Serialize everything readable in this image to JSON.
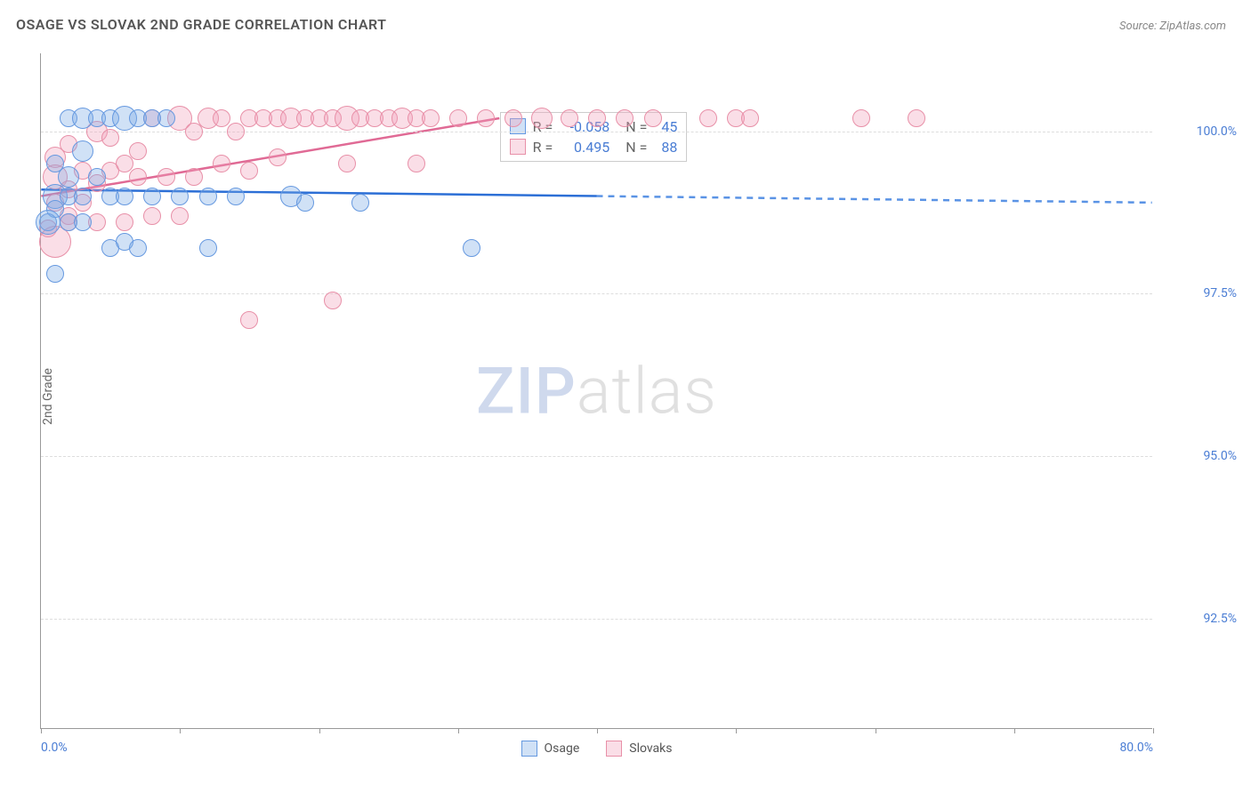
{
  "title": "OSAGE VS SLOVAK 2ND GRADE CORRELATION CHART",
  "source": "Source: ZipAtlas.com",
  "ylabel": "2nd Grade",
  "watermark_zip": "ZIP",
  "watermark_atlas": "atlas",
  "chart": {
    "type": "scatter",
    "xlim": [
      0,
      80
    ],
    "ylim": [
      90.8,
      101.2
    ],
    "x_tick_positions": [
      0,
      10,
      20,
      30,
      40,
      50,
      60,
      70,
      80
    ],
    "x_tick_labels_shown": {
      "0": "0.0%",
      "80": "80.0%"
    },
    "y_tick_positions": [
      92.5,
      95.0,
      97.5,
      100.0
    ],
    "y_tick_labels": {
      "92.5": "92.5%",
      "95.0": "95.0%",
      "97.5": "97.5%",
      "100.0": "100.0%"
    },
    "grid_color": "#dddddd",
    "axis_color": "#999999",
    "background_color": "#ffffff",
    "label_color": "#4a7dd4",
    "title_color": "#555555",
    "title_fontsize": 16,
    "label_fontsize": 14
  },
  "series": {
    "osage": {
      "label": "Osage",
      "stroke": "#6699e0",
      "fill": "rgba(120,170,230,0.35)",
      "regression": {
        "x1": 0,
        "y1": 99.1,
        "x_solid_end": 40,
        "y_solid_end": 99.0,
        "x2": 80,
        "y2": 98.9,
        "solid_color": "#2c6fd6",
        "dash_color": "#5a93e5"
      },
      "stats": {
        "R": "-0.058",
        "N": "45"
      },
      "points": [
        {
          "x": 2,
          "y": 100.2,
          "r": 10
        },
        {
          "x": 3,
          "y": 100.2,
          "r": 12
        },
        {
          "x": 3,
          "y": 99.7,
          "r": 12
        },
        {
          "x": 4,
          "y": 100.2,
          "r": 10
        },
        {
          "x": 5,
          "y": 100.2,
          "r": 10
        },
        {
          "x": 6,
          "y": 100.2,
          "r": 14
        },
        {
          "x": 7,
          "y": 100.2,
          "r": 10
        },
        {
          "x": 8,
          "y": 100.2,
          "r": 10
        },
        {
          "x": 9,
          "y": 100.2,
          "r": 10
        },
        {
          "x": 1,
          "y": 99.5,
          "r": 10
        },
        {
          "x": 2,
          "y": 99.3,
          "r": 12
        },
        {
          "x": 4,
          "y": 99.3,
          "r": 10
        },
        {
          "x": 1,
          "y": 99.0,
          "r": 14
        },
        {
          "x": 2,
          "y": 99.0,
          "r": 10
        },
        {
          "x": 3,
          "y": 99.0,
          "r": 10
        },
        {
          "x": 5,
          "y": 99.0,
          "r": 10
        },
        {
          "x": 6,
          "y": 99.0,
          "r": 10
        },
        {
          "x": 8,
          "y": 99.0,
          "r": 10
        },
        {
          "x": 10,
          "y": 99.0,
          "r": 10
        },
        {
          "x": 12,
          "y": 99.0,
          "r": 10
        },
        {
          "x": 14,
          "y": 99.0,
          "r": 10
        },
        {
          "x": 18,
          "y": 99.0,
          "r": 12
        },
        {
          "x": 1,
          "y": 98.8,
          "r": 10
        },
        {
          "x": 0.5,
          "y": 98.6,
          "r": 10
        },
        {
          "x": 2,
          "y": 98.6,
          "r": 10
        },
        {
          "x": 3,
          "y": 98.6,
          "r": 10
        },
        {
          "x": 19,
          "y": 98.9,
          "r": 10
        },
        {
          "x": 23,
          "y": 98.9,
          "r": 10
        },
        {
          "x": 5,
          "y": 98.2,
          "r": 10
        },
        {
          "x": 6,
          "y": 98.3,
          "r": 10
        },
        {
          "x": 7,
          "y": 98.2,
          "r": 10
        },
        {
          "x": 12,
          "y": 98.2,
          "r": 10
        },
        {
          "x": 31,
          "y": 98.2,
          "r": 10
        },
        {
          "x": 1,
          "y": 97.8,
          "r": 10
        },
        {
          "x": 0.5,
          "y": 98.6,
          "r": 14
        }
      ]
    },
    "slovaks": {
      "label": "Slovaks",
      "stroke": "#e890a8",
      "fill": "rgba(240,160,185,0.35)",
      "regression": {
        "x1": 0,
        "y1": 99.0,
        "x_solid_end": 33,
        "y_solid_end": 100.2,
        "x2": 33,
        "y2": 100.2,
        "solid_color": "#e06a95",
        "dash_color": "#e890a8"
      },
      "stats": {
        "R": "0.495",
        "N": "88"
      },
      "points": [
        {
          "x": 1,
          "y": 99.6,
          "r": 12
        },
        {
          "x": 2,
          "y": 99.8,
          "r": 10
        },
        {
          "x": 3,
          "y": 99.4,
          "r": 10
        },
        {
          "x": 4,
          "y": 100.0,
          "r": 12
        },
        {
          "x": 5,
          "y": 99.9,
          "r": 10
        },
        {
          "x": 7,
          "y": 99.7,
          "r": 10
        },
        {
          "x": 8,
          "y": 100.2,
          "r": 10
        },
        {
          "x": 10,
          "y": 100.2,
          "r": 14
        },
        {
          "x": 11,
          "y": 100.0,
          "r": 10
        },
        {
          "x": 12,
          "y": 100.2,
          "r": 12
        },
        {
          "x": 13,
          "y": 100.2,
          "r": 10
        },
        {
          "x": 14,
          "y": 100.0,
          "r": 10
        },
        {
          "x": 15,
          "y": 100.2,
          "r": 10
        },
        {
          "x": 16,
          "y": 100.2,
          "r": 10
        },
        {
          "x": 17,
          "y": 100.2,
          "r": 10
        },
        {
          "x": 18,
          "y": 100.2,
          "r": 12
        },
        {
          "x": 19,
          "y": 100.2,
          "r": 10
        },
        {
          "x": 20,
          "y": 100.2,
          "r": 10
        },
        {
          "x": 21,
          "y": 100.2,
          "r": 10
        },
        {
          "x": 22,
          "y": 100.2,
          "r": 14
        },
        {
          "x": 23,
          "y": 100.2,
          "r": 10
        },
        {
          "x": 24,
          "y": 100.2,
          "r": 10
        },
        {
          "x": 25,
          "y": 100.2,
          "r": 10
        },
        {
          "x": 26,
          "y": 100.2,
          "r": 12
        },
        {
          "x": 27,
          "y": 100.2,
          "r": 10
        },
        {
          "x": 28,
          "y": 100.2,
          "r": 10
        },
        {
          "x": 30,
          "y": 100.2,
          "r": 10
        },
        {
          "x": 32,
          "y": 100.2,
          "r": 10
        },
        {
          "x": 34,
          "y": 100.2,
          "r": 10
        },
        {
          "x": 36,
          "y": 100.2,
          "r": 12
        },
        {
          "x": 38,
          "y": 100.2,
          "r": 10
        },
        {
          "x": 40,
          "y": 100.2,
          "r": 10
        },
        {
          "x": 42,
          "y": 100.2,
          "r": 10
        },
        {
          "x": 44,
          "y": 100.2,
          "r": 10
        },
        {
          "x": 48,
          "y": 100.2,
          "r": 10
        },
        {
          "x": 50,
          "y": 100.2,
          "r": 10
        },
        {
          "x": 51,
          "y": 100.2,
          "r": 10
        },
        {
          "x": 59,
          "y": 100.2,
          "r": 10
        },
        {
          "x": 63,
          "y": 100.2,
          "r": 10
        },
        {
          "x": 1,
          "y": 99.3,
          "r": 14
        },
        {
          "x": 2,
          "y": 99.1,
          "r": 10
        },
        {
          "x": 3,
          "y": 98.9,
          "r": 10
        },
        {
          "x": 1,
          "y": 98.9,
          "r": 10
        },
        {
          "x": 2,
          "y": 98.7,
          "r": 10
        },
        {
          "x": 0.5,
          "y": 98.5,
          "r": 10
        },
        {
          "x": 1,
          "y": 98.3,
          "r": 18
        },
        {
          "x": 4,
          "y": 99.2,
          "r": 10
        },
        {
          "x": 5,
          "y": 99.4,
          "r": 10
        },
        {
          "x": 6,
          "y": 99.5,
          "r": 10
        },
        {
          "x": 7,
          "y": 99.3,
          "r": 10
        },
        {
          "x": 9,
          "y": 99.3,
          "r": 10
        },
        {
          "x": 11,
          "y": 99.3,
          "r": 10
        },
        {
          "x": 13,
          "y": 99.5,
          "r": 10
        },
        {
          "x": 15,
          "y": 99.4,
          "r": 10
        },
        {
          "x": 17,
          "y": 99.6,
          "r": 10
        },
        {
          "x": 22,
          "y": 99.5,
          "r": 10
        },
        {
          "x": 27,
          "y": 99.5,
          "r": 10
        },
        {
          "x": 2,
          "y": 98.6,
          "r": 10
        },
        {
          "x": 4,
          "y": 98.6,
          "r": 10
        },
        {
          "x": 6,
          "y": 98.6,
          "r": 10
        },
        {
          "x": 8,
          "y": 98.7,
          "r": 10
        },
        {
          "x": 10,
          "y": 98.7,
          "r": 10
        },
        {
          "x": 21,
          "y": 97.4,
          "r": 10
        },
        {
          "x": 15,
          "y": 97.1,
          "r": 10
        }
      ]
    }
  },
  "stats_box": {
    "r_label": "R =",
    "n_label": "N ="
  },
  "bottom_legend": [
    {
      "key": "osage"
    },
    {
      "key": "slovaks"
    }
  ]
}
